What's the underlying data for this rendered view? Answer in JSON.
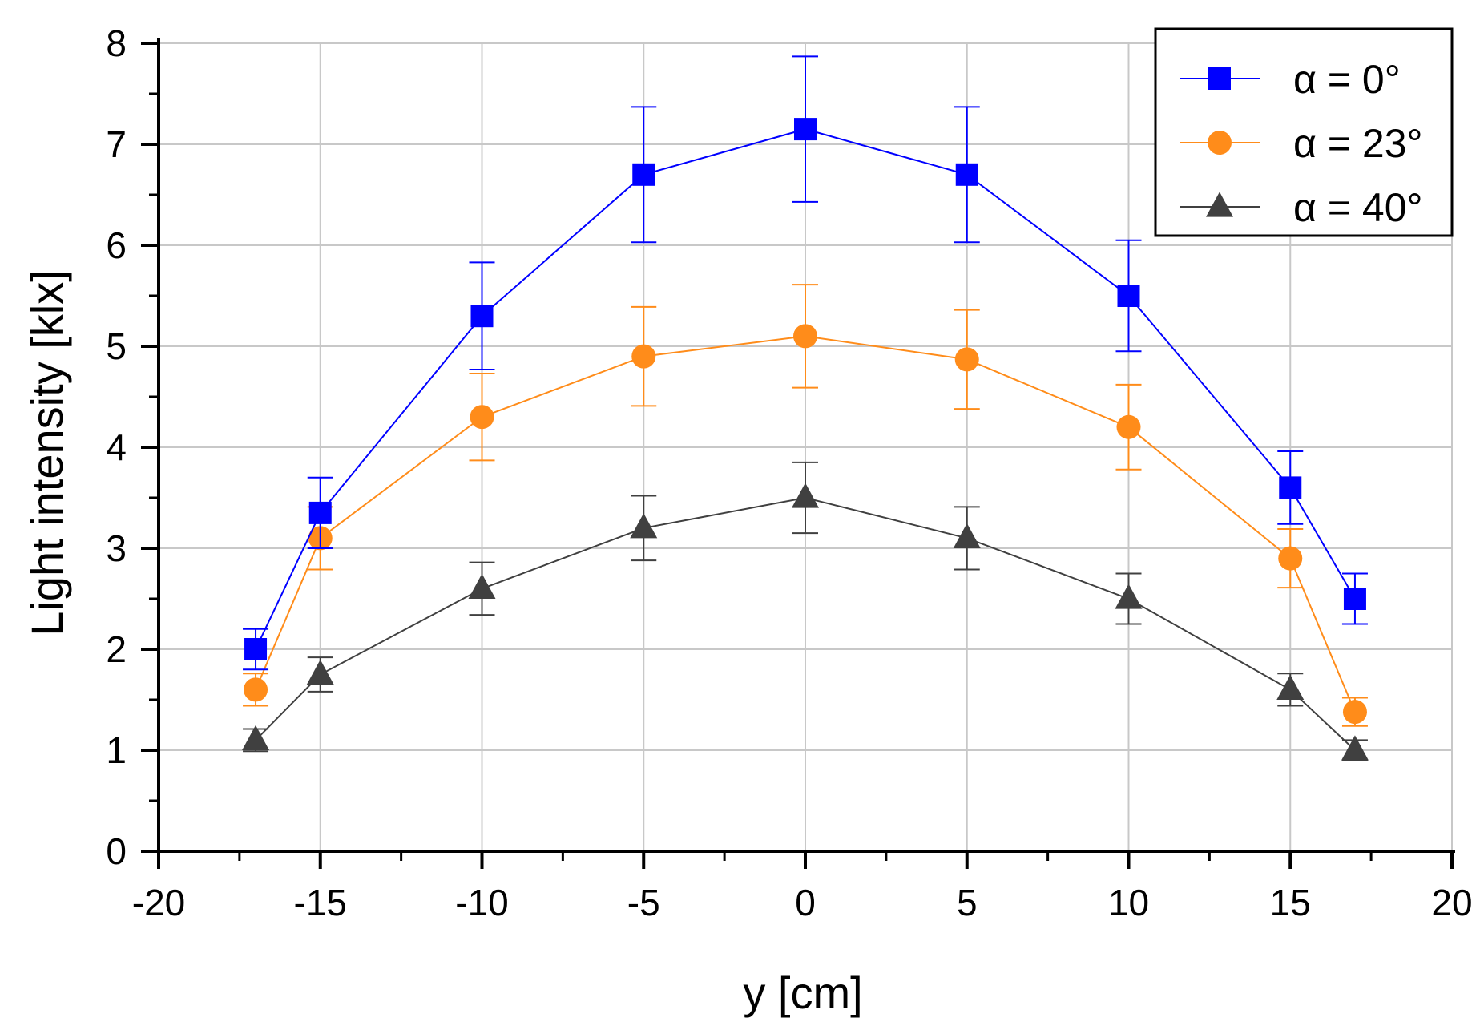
{
  "chart_data": {
    "type": "line",
    "title": "",
    "xlabel": "y [cm]",
    "ylabel": "Light intensity [klx]",
    "xlim": [
      -20,
      20
    ],
    "ylim": [
      0,
      8
    ],
    "xticks": [
      "-20",
      "-15",
      "-10",
      "-5",
      "0",
      "5",
      "10",
      "15",
      "20"
    ],
    "yticks": [
      "0",
      "1",
      "2",
      "3",
      "4",
      "5",
      "6",
      "7",
      "8"
    ],
    "grid": true,
    "legend_position": "top-right",
    "x": [
      -17,
      -15,
      -10,
      -5,
      0,
      5,
      10,
      15,
      17
    ],
    "series": [
      {
        "name": "α = 0°",
        "color": "#0000ff",
        "marker": "square",
        "values": [
          2.0,
          3.35,
          5.3,
          6.7,
          7.15,
          6.7,
          5.5,
          3.6,
          2.5
        ],
        "errors": [
          0.2,
          0.35,
          0.53,
          0.67,
          0.72,
          0.67,
          0.55,
          0.36,
          0.25
        ]
      },
      {
        "name": "α = 23°",
        "color": "#ff8c1a",
        "marker": "circle",
        "values": [
          1.6,
          3.1,
          4.3,
          4.9,
          5.1,
          4.87,
          4.2,
          2.9,
          1.38
        ],
        "errors": [
          0.16,
          0.31,
          0.43,
          0.49,
          0.51,
          0.49,
          0.42,
          0.29,
          0.14
        ]
      },
      {
        "name": "α = 40°",
        "color": "#404040",
        "marker": "triangle",
        "values": [
          1.1,
          1.75,
          2.6,
          3.2,
          3.5,
          3.1,
          2.5,
          1.6,
          1.0
        ],
        "errors": [
          0.11,
          0.17,
          0.26,
          0.32,
          0.35,
          0.31,
          0.25,
          0.16,
          0.1
        ]
      }
    ]
  }
}
